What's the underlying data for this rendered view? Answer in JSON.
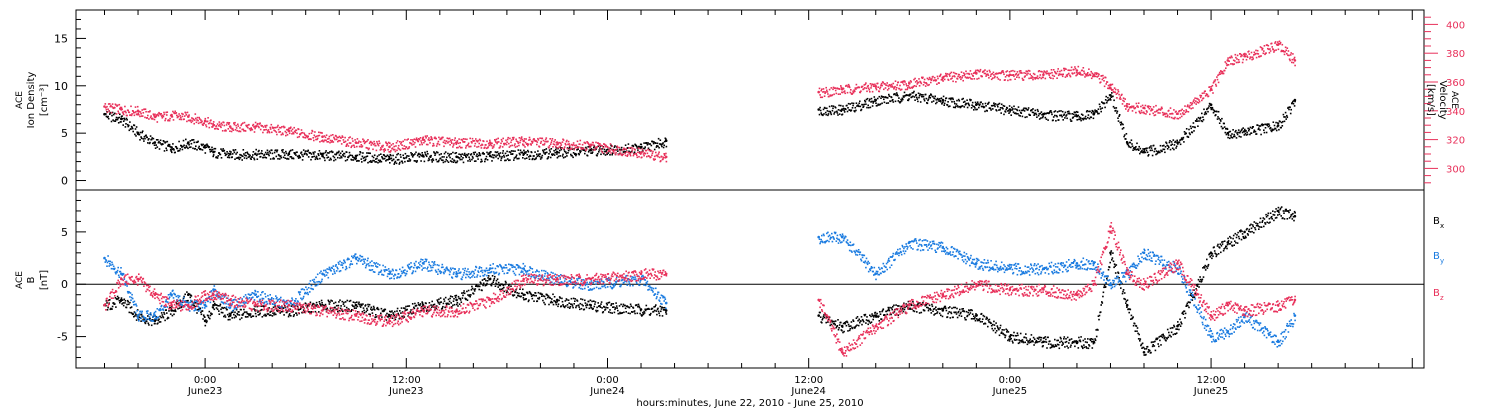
{
  "chart_data": [
    {
      "type": "scatter",
      "panel": "top",
      "ylabel_lines": [
        "ACE",
        "Ion Density"
      ],
      "yunit_left": "[cm⁻³]",
      "ylabel_right_lines": [
        "ACE",
        "Velocity"
      ],
      "yunit_right": "[km/s]",
      "ylim": [
        -1,
        18
      ],
      "yticks": [
        0,
        5,
        10,
        15
      ],
      "ylim_right": [
        285,
        410
      ],
      "yticks_right": [
        300,
        320,
        340,
        360,
        380,
        400
      ],
      "grid": false,
      "colors": {
        "density": "#000000",
        "velocity": "#e8305a"
      },
      "series": [
        {
          "name_hidden": "density",
          "x": [
            -6,
            -5,
            -4,
            -3,
            -2,
            -1,
            0,
            0.5,
            1.5,
            3,
            5,
            7,
            9,
            11,
            13,
            15,
            17,
            19,
            21,
            23,
            26,
            27.5,
            36.6,
            38,
            40,
            42,
            44,
            46,
            48,
            50,
            52,
            53,
            54,
            55,
            56,
            58,
            60,
            61,
            62,
            64,
            65
          ],
          "y": [
            7,
            6.5,
            5,
            4,
            3.5,
            4,
            3.5,
            3,
            2.8,
            2.8,
            2.8,
            2.7,
            2.6,
            2.3,
            2.6,
            2.5,
            2.6,
            2.8,
            3.0,
            3.2,
            3.5,
            4.2,
            7.5,
            7.5,
            8.5,
            9,
            8.5,
            8,
            7.5,
            7,
            6.8,
            7,
            9,
            4,
            3,
            4,
            8,
            5,
            5.2,
            5.8,
            8.5
          ]
        },
        {
          "name_hidden": "velocity",
          "x": [
            -6,
            -5,
            -4,
            -3,
            -2,
            -1,
            0,
            0.5,
            1.5,
            3,
            5,
            7,
            9,
            11,
            13,
            15,
            17,
            19,
            21,
            23,
            26,
            27.5,
            36.6,
            38,
            40,
            42,
            44,
            46,
            48,
            50,
            52,
            53,
            54,
            55,
            56,
            58,
            60,
            61,
            62,
            64,
            65
          ],
          "y": [
            343,
            341,
            340,
            336,
            337,
            336,
            333,
            330,
            329,
            329,
            326,
            322,
            318,
            315,
            320,
            318,
            318,
            319,
            318,
            316,
            311,
            308,
            353,
            355,
            357,
            359,
            363,
            366,
            365,
            365,
            368,
            365,
            358,
            343,
            342,
            338,
            355,
            375,
            378,
            386,
            375
          ]
        }
      ]
    },
    {
      "type": "scatter",
      "panel": "bottom",
      "ylabel_lines": [
        "ACE",
        "B"
      ],
      "yunit_left": "[nT]",
      "ylim": [
        -8,
        9
      ],
      "yticks": [
        -5,
        0,
        5
      ],
      "zero_line": true,
      "grid": false,
      "legend_position": "right",
      "x_tick_labels": [
        {
          "x": 0,
          "time": "0:00",
          "date": "June23"
        },
        {
          "x": 12,
          "time": "12:00",
          "date": "June23"
        },
        {
          "x": 24,
          "time": "0:00",
          "date": "June24"
        },
        {
          "x": 36,
          "time": "12:00",
          "date": "June24"
        },
        {
          "x": 48,
          "time": "0:00",
          "date": "June25"
        },
        {
          "x": 60,
          "time": "12:00",
          "date": "June25"
        }
      ],
      "xlim": [
        -7.7,
        72.7
      ],
      "xlabel": "hours:minutes, June 22, 2010 - June 25, 2010",
      "colors": {
        "Bx": "#000000",
        "By": "#1a7be0",
        "Bz": "#e8305a"
      },
      "series": [
        {
          "name": "B",
          "sub": "x",
          "x": [
            -6,
            -5,
            -4,
            -3,
            -2,
            -1,
            0,
            0.5,
            1.5,
            3,
            5,
            7,
            9,
            11,
            13,
            15,
            17,
            19,
            21,
            23,
            26,
            27.5,
            36.6,
            38,
            40,
            42,
            44,
            46,
            48,
            50,
            52,
            53,
            54,
            55,
            56,
            58,
            60,
            61,
            62,
            64,
            65
          ],
          "y": [
            -2,
            -1.5,
            -3,
            -3.5,
            -2.5,
            -1,
            -3.5,
            -2,
            -3,
            -2.5,
            -2.5,
            -2,
            -2,
            -3,
            -2,
            -1.5,
            0.5,
            -1,
            -1.5,
            -2,
            -2.4,
            -2.5,
            -3,
            -4,
            -3,
            -2,
            -2.5,
            -3,
            -5,
            -5.5,
            -5.5,
            -5.5,
            3,
            -2,
            -6.5,
            -4,
            3,
            4,
            5,
            7,
            6.5
          ]
        },
        {
          "name": "B",
          "sub": "y",
          "x": [
            -6,
            -5,
            -4,
            -3,
            -2,
            -1,
            0,
            0.5,
            1.5,
            3,
            5,
            7,
            9,
            11,
            13,
            15,
            17,
            19,
            21,
            23,
            26,
            27.5,
            36.6,
            38,
            40,
            42,
            44,
            46,
            48,
            50,
            52,
            53,
            54,
            55,
            56,
            58,
            60,
            61,
            62,
            64,
            65
          ],
          "y": [
            2.5,
            1,
            -3,
            -3,
            -1,
            -2,
            -2,
            -0.5,
            -2,
            -1,
            -2,
            1,
            2.5,
            1,
            2,
            1,
            1.5,
            1.5,
            0.5,
            0,
            0.5,
            -1.8,
            4.5,
            4.5,
            1,
            4,
            3.5,
            2,
            1.5,
            1.5,
            2,
            2,
            0,
            1,
            3,
            1.5,
            -5,
            -4.5,
            -3,
            -5.5,
            -3
          ]
        },
        {
          "name": "B",
          "sub": "z",
          "x": [
            -6,
            -5,
            -4,
            -3,
            -2,
            -1,
            0,
            0.5,
            1.5,
            3,
            5,
            7,
            9,
            11,
            13,
            15,
            17,
            19,
            21,
            23,
            26,
            27.5,
            36.6,
            38,
            40,
            42,
            44,
            46,
            48,
            50,
            52,
            53,
            54,
            55,
            56,
            58,
            60,
            61,
            62,
            64,
            65
          ],
          "y": [
            -2,
            0.5,
            0.5,
            -1,
            -2,
            -2,
            -1,
            -1,
            -1.5,
            -2,
            -2,
            -2.5,
            -3,
            -3.5,
            -2.5,
            -2.5,
            -1.5,
            0.5,
            0.5,
            0.5,
            1,
            1,
            -1.5,
            -6.5,
            -4,
            -2,
            -1,
            0,
            -0.5,
            -0.5,
            -1,
            0,
            5.5,
            1,
            0,
            2,
            -3,
            -2,
            -2.5,
            -2,
            -1.5
          ]
        }
      ]
    }
  ]
}
